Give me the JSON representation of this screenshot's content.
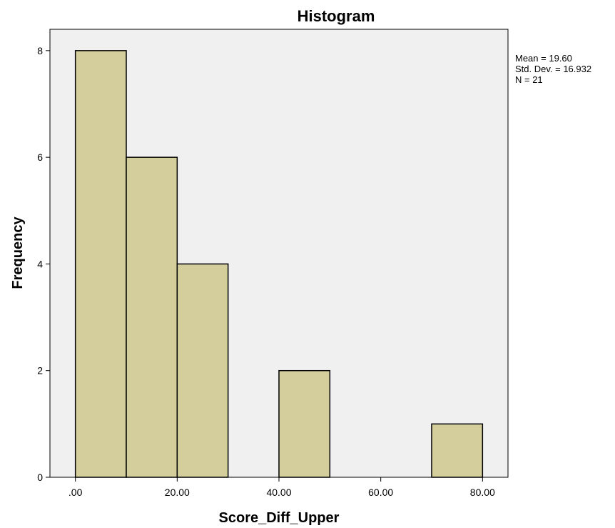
{
  "chart_data": {
    "type": "bar",
    "title": "Histogram",
    "xlabel": "Score_Diff_Upper",
    "ylabel": "Frequency",
    "bin_width": 10,
    "bins": [
      {
        "start": 0,
        "end": 10,
        "count": 8
      },
      {
        "start": 10,
        "end": 20,
        "count": 6
      },
      {
        "start": 20,
        "end": 30,
        "count": 4
      },
      {
        "start": 30,
        "end": 40,
        "count": 0
      },
      {
        "start": 40,
        "end": 50,
        "count": 2
      },
      {
        "start": 50,
        "end": 60,
        "count": 0
      },
      {
        "start": 60,
        "end": 70,
        "count": 0
      },
      {
        "start": 70,
        "end": 80,
        "count": 1
      }
    ],
    "xlim": [
      -5,
      85
    ],
    "ylim": [
      0,
      8.4
    ],
    "x_ticks": [
      0,
      20,
      40,
      60,
      80
    ],
    "x_tick_labels": [
      ".00",
      "20.00",
      "40.00",
      "60.00",
      "80.00"
    ],
    "y_ticks": [
      0,
      2,
      4,
      6,
      8
    ],
    "y_tick_labels": [
      "0",
      "2",
      "4",
      "6",
      "8"
    ],
    "stats": {
      "mean": "Mean = 19.60",
      "std_dev": "Std. Dev. = 16.932",
      "n": "N = 21"
    },
    "colors": {
      "bar_fill": "#d3ce9b",
      "bar_stroke": "#000000",
      "plot_background": "#f0f0f0",
      "page_background": "#ffffff"
    },
    "grid": false
  }
}
